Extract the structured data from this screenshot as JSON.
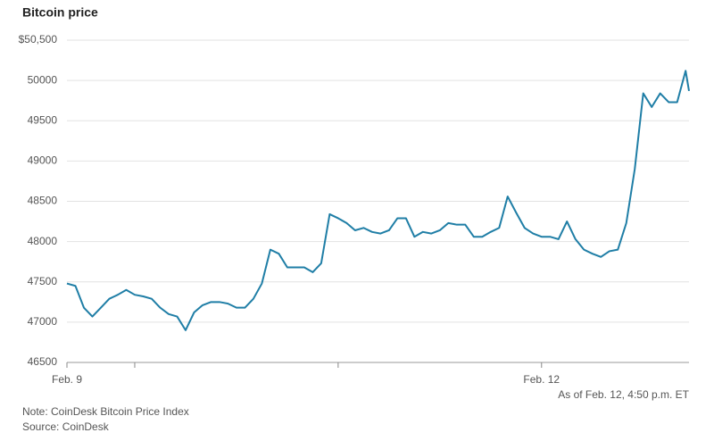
{
  "chart_data": {
    "type": "line",
    "title": "Bitcoin price",
    "annotation": "As of Feb. 12, 4:50 p.m. ET",
    "note": "Note: CoinDesk Bitcoin Price Index",
    "source": "Source: CoinDesk",
    "x": [
      0,
      1,
      2,
      3,
      4,
      5,
      6,
      7,
      8,
      9,
      10,
      11,
      12,
      13,
      14,
      15,
      16,
      17,
      18,
      19,
      20,
      21,
      22,
      23,
      24,
      25,
      26,
      27,
      28,
      29,
      30,
      31,
      32,
      33,
      34,
      35,
      36,
      37,
      38,
      39,
      40,
      41,
      42,
      43,
      44,
      45,
      46,
      47,
      48,
      49,
      50,
      51,
      52,
      53,
      54,
      55,
      56,
      57,
      58,
      59,
      60,
      61,
      62,
      63,
      64,
      65,
      66,
      67,
      68,
      69,
      70,
      71,
      72,
      73,
      73.4
    ],
    "series": [
      {
        "name": "Bitcoin price",
        "color": "#1f7ea6",
        "values": [
          47480,
          47450,
          47180,
          47070,
          47180,
          47290,
          47340,
          47400,
          47340,
          47320,
          47290,
          47180,
          47100,
          47070,
          46900,
          47120,
          47210,
          47250,
          47250,
          47230,
          47180,
          47180,
          47290,
          47480,
          47900,
          47850,
          47680,
          47680,
          47680,
          47620,
          47730,
          48340,
          48290,
          48230,
          48140,
          48170,
          48120,
          48100,
          48140,
          48290,
          48290,
          48060,
          48120,
          48100,
          48140,
          48230,
          48210,
          48210,
          48060,
          48060,
          48120,
          48170,
          48560,
          48360,
          48170,
          48100,
          48060,
          48060,
          48030,
          48250,
          48030,
          47900,
          47850,
          47810,
          47880,
          47900,
          48230,
          48900,
          49840,
          49670,
          49840,
          49730,
          49730,
          50120,
          49870
        ]
      }
    ],
    "xlim": [
      0,
      73.4
    ],
    "xticks": [
      {
        "value": 0,
        "label": "Feb. 9"
      },
      {
        "value": 8
      },
      {
        "value": 32
      },
      {
        "value": 56,
        "label": "Feb. 12"
      }
    ],
    "ylim": [
      46500,
      50500
    ],
    "yticks": [
      46500,
      47000,
      47500,
      48000,
      48500,
      49000,
      49500,
      50000,
      {
        "value": 50500,
        "label": "$50,500"
      }
    ],
    "grid": true
  }
}
